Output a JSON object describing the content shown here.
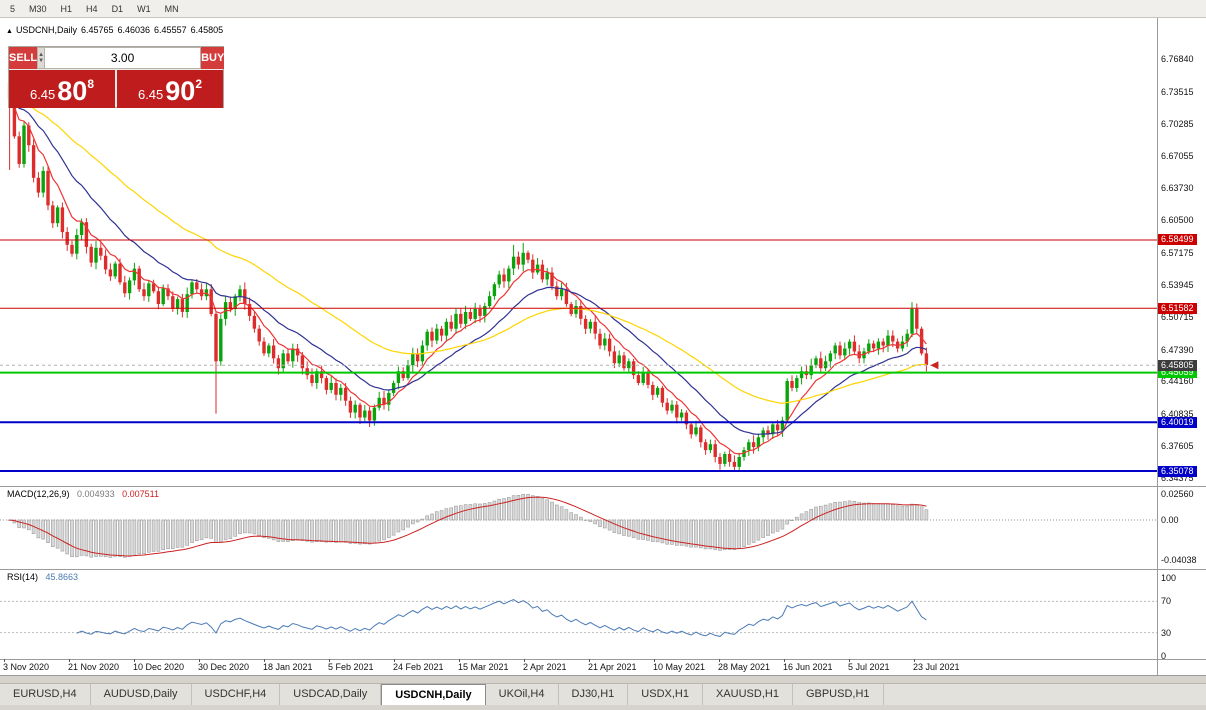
{
  "toolbar": {
    "timeframes": [
      "5",
      "M30",
      "H1",
      "H4",
      "D1",
      "W1",
      "MN"
    ]
  },
  "chart": {
    "collapse_arrow": "▲",
    "symbol": "USDCNH,Daily",
    "ohlc": {
      "open": "6.45765",
      "high": "6.46036",
      "low": "6.45557",
      "close": "6.45805"
    }
  },
  "one_click": {
    "sell_label": "SELL",
    "buy_label": "BUY",
    "volume": "3.00",
    "sell_price": {
      "prefix": "6.45",
      "big": "80",
      "sup": "8"
    },
    "buy_price": {
      "prefix": "6.45",
      "big": "90",
      "sup": "2"
    }
  },
  "indicators": {
    "macd": {
      "label": "MACD(12,26,9)",
      "value1": "0.004933",
      "value2": "0.007511"
    },
    "rsi": {
      "label": "RSI(14)",
      "value": "45.8663"
    }
  },
  "price_axis": {
    "ticks": [
      "6.76840",
      "6.73515",
      "6.70285",
      "6.67055",
      "6.63730",
      "6.60500",
      "6.57175",
      "6.53945",
      "6.50715",
      "6.47390",
      "6.44160",
      "6.40835",
      "6.37605",
      "6.34375"
    ]
  },
  "levels": [
    {
      "value": "6.58499",
      "price": 6.58499,
      "color": "#cc0000",
      "width": 1,
      "type": "resistance"
    },
    {
      "value": "6.51582",
      "price": 6.51582,
      "color": "#cc0000",
      "width": 1,
      "type": "resistance"
    },
    {
      "value": "6.45805",
      "price": 6.45805,
      "color": "#3c3c3c",
      "width": 1,
      "type": "current"
    },
    {
      "value": "6.45059",
      "price": 6.45059,
      "color": "#00c800",
      "width": 2,
      "type": "support"
    },
    {
      "value": "6.40019",
      "price": 6.40019,
      "color": "#0000c8",
      "width": 2,
      "type": "support"
    },
    {
      "value": "6.35078",
      "price": 6.35078,
      "color": "#0000c8",
      "width": 2,
      "type": "support"
    }
  ],
  "macd_axis": [
    "0.02560",
    "0.00",
    "-0.04038"
  ],
  "rsi_axis": [
    "100",
    "70",
    "30",
    "0"
  ],
  "time_axis": [
    "3 Nov 2020",
    "21 Nov 2020",
    "10 Dec 2020",
    "30 Dec 2020",
    "18 Jan 2021",
    "5 Feb 2021",
    "24 Feb 2021",
    "15 Mar 2021",
    "2 Apr 2021",
    "21 Apr 2021",
    "10 May 2021",
    "28 May 2021",
    "16 Jun 2021",
    "5 Jul 2021",
    "23 Jul 2021"
  ],
  "tabs": {
    "active_index": 4,
    "items": [
      {
        "label": "EURUSD,H4"
      },
      {
        "label": "AUDUSD,Daily"
      },
      {
        "label": "USDCHF,H4"
      },
      {
        "label": "USDCAD,Daily"
      },
      {
        "label": "USDCNH,Daily"
      },
      {
        "label": "UKOil,H4"
      },
      {
        "label": "DJ30,H1"
      },
      {
        "label": "USDX,H1"
      },
      {
        "label": "XAUUSD,H1"
      },
      {
        "label": "GBPUSD,H1"
      }
    ]
  },
  "chart_data": {
    "type": "candlestick",
    "symbol": "USDCNH",
    "timeframe": "Daily",
    "x_range": [
      "3 Nov 2020",
      "23 Jul 2021"
    ],
    "y_range": [
      6.3356,
      6.81
    ],
    "first_open": 6.744,
    "closes": [
      6.728,
      6.69,
      6.662,
      6.701,
      6.681,
      6.648,
      6.633,
      6.655,
      6.62,
      6.602,
      6.618,
      6.593,
      6.58,
      6.571,
      6.59,
      6.603,
      6.578,
      6.562,
      6.577,
      6.569,
      6.555,
      6.548,
      6.561,
      6.542,
      6.531,
      6.544,
      6.556,
      6.535,
      6.528,
      6.541,
      6.533,
      6.52,
      6.536,
      6.528,
      6.515,
      6.525,
      6.512,
      6.53,
      6.542,
      6.535,
      6.528,
      6.535,
      6.51,
      6.462,
      6.505,
      6.522,
      6.515,
      6.528,
      6.535,
      6.52,
      6.508,
      6.495,
      6.482,
      6.47,
      6.478,
      6.465,
      6.455,
      6.47,
      6.462,
      6.475,
      6.468,
      6.455,
      6.448,
      6.44,
      6.452,
      6.445,
      6.433,
      6.44,
      6.428,
      6.435,
      6.422,
      6.41,
      6.418,
      6.405,
      6.412,
      6.402,
      6.415,
      6.425,
      6.418,
      6.43,
      6.44,
      6.452,
      6.445,
      6.458,
      6.47,
      6.462,
      6.478,
      6.492,
      6.483,
      6.495,
      6.488,
      6.502,
      6.495,
      6.51,
      6.5,
      6.512,
      6.505,
      6.515,
      6.508,
      6.518,
      6.528,
      6.54,
      6.55,
      6.543,
      6.556,
      6.568,
      6.56,
      6.572,
      6.565,
      6.552,
      6.56,
      6.545,
      6.552,
      6.538,
      6.528,
      6.535,
      6.52,
      6.51,
      6.518,
      6.505,
      6.495,
      6.502,
      6.49,
      6.478,
      6.485,
      6.472,
      6.46,
      6.468,
      6.455,
      6.462,
      6.448,
      6.44,
      6.45,
      6.438,
      6.428,
      6.435,
      6.42,
      6.412,
      6.418,
      6.405,
      6.41,
      6.398,
      6.388,
      6.395,
      6.38,
      6.372,
      6.378,
      6.365,
      6.358,
      6.368,
      6.36,
      6.355,
      6.365,
      6.372,
      6.38,
      6.375,
      6.385,
      6.392,
      6.388,
      6.398,
      6.392,
      6.402,
      6.442,
      6.435,
      6.445,
      6.452,
      6.448,
      6.458,
      6.465,
      6.455,
      6.462,
      6.47,
      6.478,
      6.468,
      6.475,
      6.482,
      6.472,
      6.465,
      6.472,
      6.48,
      6.475,
      6.482,
      6.478,
      6.488,
      6.482,
      6.475,
      6.482,
      6.49,
      6.515,
      6.495,
      6.47,
      6.458
    ],
    "spikes": [
      {
        "i": 0,
        "high": 6.747,
        "low": 6.656
      },
      {
        "i": 43,
        "low": 6.409
      },
      {
        "i": 105,
        "high": 6.58
      },
      {
        "i": 107,
        "high": 6.582
      },
      {
        "i": 151,
        "low": 6.3508
      },
      {
        "i": 162,
        "low": 6.4
      },
      {
        "i": 188,
        "high": 6.522
      }
    ],
    "mas": [
      {
        "name": "fast-ma",
        "period": 8,
        "color": "#f03333"
      },
      {
        "name": "medium-ma",
        "period": 20,
        "color": "#2e3192"
      },
      {
        "name": "slow-ma",
        "period": 48,
        "color": "#ffd400"
      }
    ],
    "colors": {
      "up": "#0ba30b",
      "down": "#dd2c2c",
      "macd_hist_fill": "#d8d8d8",
      "macd_hist_stroke": "#9e9e9e",
      "macd_signal": "#cc2222",
      "rsi_line": "#4a7ab5"
    },
    "macd_params": [
      12,
      26,
      9
    ],
    "rsi_period": 14,
    "rsi_levels": [
      30,
      70
    ]
  }
}
